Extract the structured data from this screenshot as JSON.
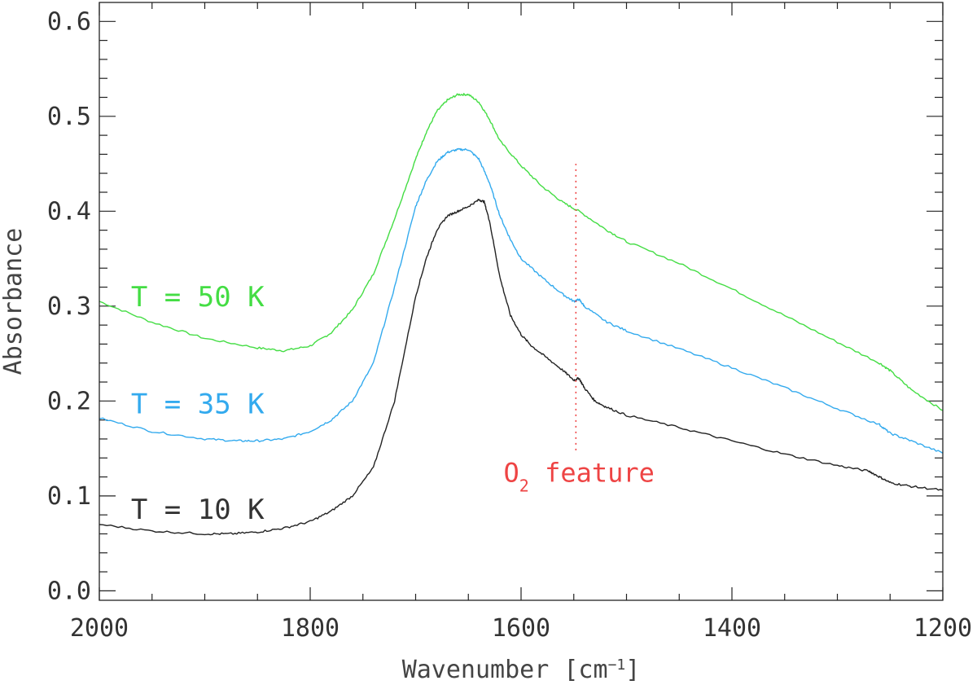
{
  "chart_data": {
    "type": "line",
    "title": "",
    "xlabel": "Wavenumber [cm",
    "xlabel_sup": "−1",
    "xlabel_close": "]",
    "ylabel": "Absorbance",
    "xlim": [
      2000,
      1200
    ],
    "ylim": [
      -0.01,
      0.62
    ],
    "x_ticks": [
      2000,
      1800,
      1600,
      1400,
      1200
    ],
    "x_tick_labels": [
      "2000",
      "1800",
      "1600",
      "1400",
      "1200"
    ],
    "y_ticks": [
      0.0,
      0.1,
      0.2,
      0.3,
      0.4,
      0.5,
      0.6
    ],
    "y_tick_labels": [
      "0.0",
      "0.1",
      "0.2",
      "0.3",
      "0.4",
      "0.5",
      "0.6"
    ],
    "series": [
      {
        "name": "T = 50 K",
        "color": "#44dd44",
        "x": [
          2000,
          1950,
          1900,
          1850,
          1825,
          1800,
          1780,
          1760,
          1740,
          1720,
          1700,
          1690,
          1680,
          1670,
          1660,
          1650,
          1640,
          1630,
          1620,
          1600,
          1580,
          1560,
          1545,
          1520,
          1500,
          1450,
          1400,
          1350,
          1300,
          1260,
          1250,
          1230,
          1200
        ],
        "y": [
          0.305,
          0.283,
          0.266,
          0.256,
          0.253,
          0.258,
          0.272,
          0.296,
          0.334,
          0.392,
          0.455,
          0.483,
          0.505,
          0.517,
          0.523,
          0.523,
          0.515,
          0.497,
          0.474,
          0.448,
          0.426,
          0.409,
          0.4,
          0.381,
          0.368,
          0.345,
          0.318,
          0.29,
          0.262,
          0.24,
          0.232,
          0.212,
          0.19
        ]
      },
      {
        "name": "T = 35 K",
        "color": "#33aaee",
        "x": [
          2000,
          1950,
          1900,
          1870,
          1850,
          1825,
          1800,
          1780,
          1760,
          1740,
          1720,
          1700,
          1690,
          1680,
          1670,
          1660,
          1650,
          1640,
          1630,
          1620,
          1610,
          1600,
          1580,
          1560,
          1550,
          1545,
          1540,
          1520,
          1500,
          1450,
          1400,
          1350,
          1300,
          1260,
          1250,
          1230,
          1200
        ],
        "y": [
          0.182,
          0.168,
          0.16,
          0.158,
          0.158,
          0.16,
          0.168,
          0.18,
          0.2,
          0.24,
          0.32,
          0.405,
          0.432,
          0.452,
          0.462,
          0.465,
          0.465,
          0.455,
          0.43,
          0.395,
          0.37,
          0.35,
          0.33,
          0.312,
          0.305,
          0.307,
          0.3,
          0.284,
          0.274,
          0.255,
          0.235,
          0.214,
          0.192,
          0.175,
          0.166,
          0.158,
          0.145
        ]
      },
      {
        "name": "T = 10 K",
        "color": "#222222",
        "x": [
          2000,
          1950,
          1900,
          1875,
          1850,
          1825,
          1800,
          1780,
          1760,
          1740,
          1720,
          1700,
          1690,
          1680,
          1670,
          1660,
          1650,
          1640,
          1635,
          1630,
          1620,
          1610,
          1600,
          1590,
          1575,
          1560,
          1550,
          1545,
          1540,
          1530,
          1520,
          1500,
          1450,
          1400,
          1350,
          1300,
          1270,
          1260,
          1250,
          1230,
          1200
        ],
        "y": [
          0.07,
          0.063,
          0.06,
          0.06,
          0.062,
          0.066,
          0.073,
          0.084,
          0.1,
          0.13,
          0.2,
          0.31,
          0.35,
          0.38,
          0.395,
          0.4,
          0.405,
          0.412,
          0.41,
          0.39,
          0.33,
          0.29,
          0.27,
          0.258,
          0.245,
          0.232,
          0.222,
          0.224,
          0.214,
          0.2,
          0.194,
          0.185,
          0.172,
          0.158,
          0.144,
          0.132,
          0.126,
          0.12,
          0.114,
          0.11,
          0.106
        ]
      }
    ],
    "series_labels": [
      {
        "text": "T = 50 K",
        "color": "#44dd44",
        "x": 1970,
        "y": 0.3
      },
      {
        "text": "T = 35 K",
        "color": "#33aaee",
        "x": 1970,
        "y": 0.187
      },
      {
        "text": "T = 10 K",
        "color": "#333333",
        "x": 1970,
        "y": 0.076
      }
    ],
    "annotations": [
      {
        "text_main": "O",
        "text_sub": "2",
        "text_rest": " feature",
        "color": "#ee4444",
        "x": 1545,
        "y": 0.115
      },
      {
        "type": "vline",
        "x": 1548,
        "y0": 0.148,
        "y1": 0.45,
        "color": "#ee4444",
        "style": "dotted"
      }
    ]
  }
}
